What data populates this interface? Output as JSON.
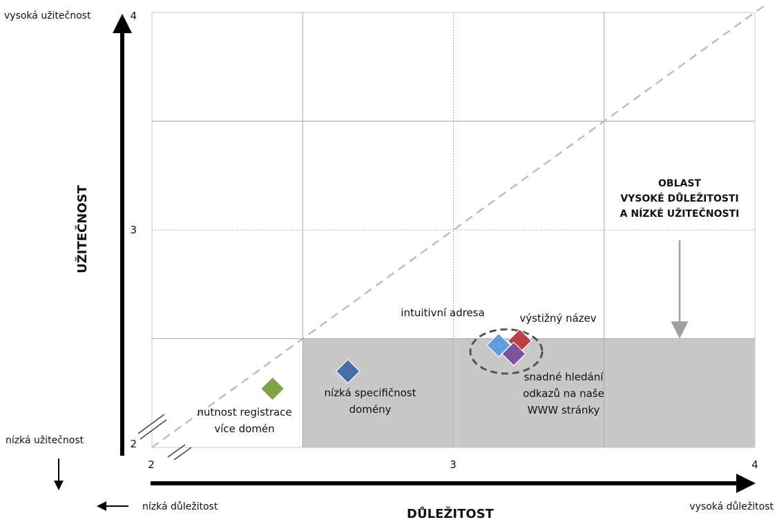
{
  "chart_data": {
    "type": "scatter",
    "xlabel": "DŮLEŽITOST",
    "ylabel": "UŽITEČNOST",
    "xlim": [
      2,
      4
    ],
    "ylim": [
      2,
      4
    ],
    "x_ticks": [
      "2",
      "3",
      "4"
    ],
    "y_ticks": [
      "2",
      "3",
      "4"
    ],
    "grid": true,
    "x_low_label": "nízká důležitost",
    "x_high_label": "vysoká důležitost",
    "y_low_label": "nízká užitečnost",
    "y_high_label": "vysoká užitečnost",
    "diagonal": "y = x",
    "highlight_region": {
      "x": [
        2.5,
        4
      ],
      "y": [
        2,
        2.5
      ],
      "label_lines": [
        "OBLAST",
        "VYSOKÉ DŮLEŽITOSTI",
        "A NÍZKÉ UŽITEČNOSTI"
      ],
      "color": "#c8c8c8"
    },
    "points": [
      {
        "label_lines": [
          "nutnost registrace",
          "více domén"
        ],
        "x": 2.4,
        "y": 2.27,
        "color": "#77a040"
      },
      {
        "label_lines": [
          "nízká specifičnost",
          "domény"
        ],
        "x": 2.65,
        "y": 2.35,
        "color": "#3c6aa6"
      },
      {
        "label_lines": [
          "intuitivní adresa"
        ],
        "x": 3.15,
        "y": 2.47,
        "color": "#5b9be0"
      },
      {
        "label_lines": [
          "výstižný název"
        ],
        "x": 3.22,
        "y": 2.49,
        "color": "#b83a3a"
      },
      {
        "label_lines": [
          "snadné hledání",
          "odkazů na naše",
          "WWW stránky"
        ],
        "x": 3.2,
        "y": 2.43,
        "color": "#7a4e9a"
      }
    ]
  }
}
